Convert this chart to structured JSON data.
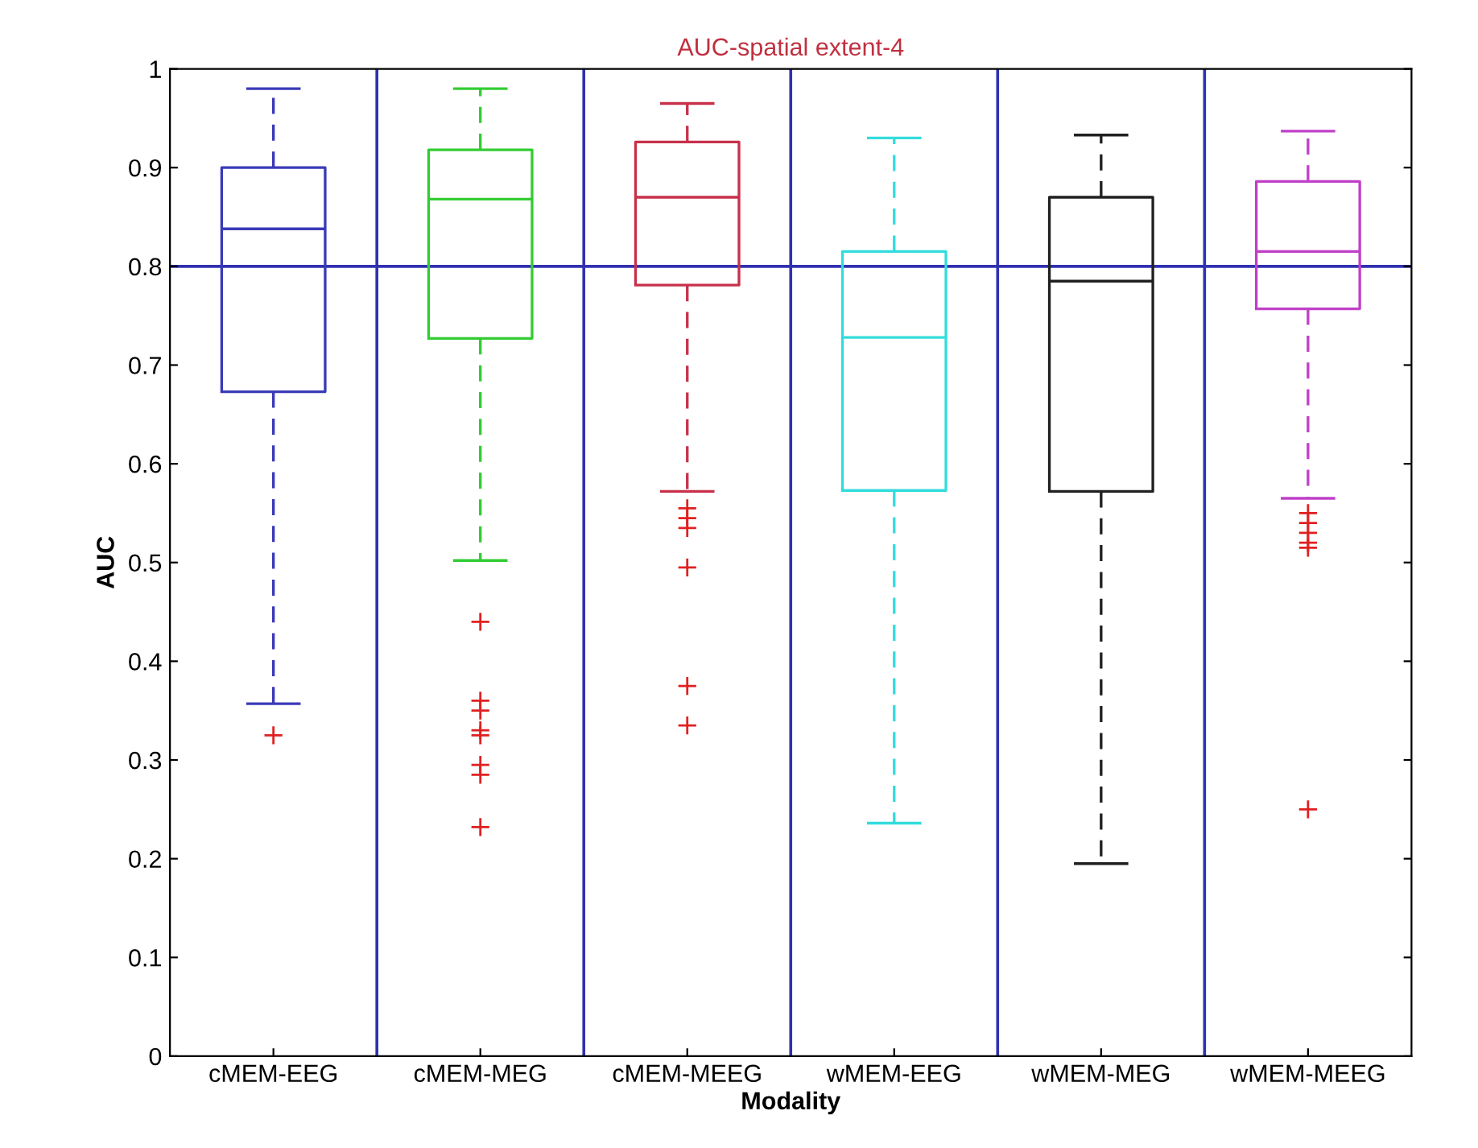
{
  "chart_data": {
    "type": "box",
    "title": "AUC-spatial extent-4",
    "xlabel": "Modality",
    "ylabel": "AUC",
    "categories": [
      "cMEM-EEG",
      "cMEM-MEG",
      "cMEM-MEEG",
      "wMEM-EEG",
      "wMEM-MEG",
      "wMEM-MEEG"
    ],
    "colors": [
      "#3a3ab8",
      "#33cc33",
      "#c8304a",
      "#33dcdc",
      "#202020",
      "#c040c8"
    ],
    "boxes": [
      {
        "low": 0.357,
        "q1": 0.673,
        "median": 0.838,
        "q3": 0.9,
        "high": 0.98,
        "outliers": [
          0.325
        ]
      },
      {
        "low": 0.502,
        "q1": 0.727,
        "median": 0.868,
        "q3": 0.918,
        "high": 0.98,
        "outliers": [
          0.44,
          0.36,
          0.35,
          0.33,
          0.325,
          0.295,
          0.285,
          0.232
        ]
      },
      {
        "low": 0.572,
        "q1": 0.781,
        "median": 0.87,
        "q3": 0.926,
        "high": 0.965,
        "outliers": [
          0.555,
          0.545,
          0.535,
          0.495,
          0.375,
          0.335
        ]
      },
      {
        "low": 0.236,
        "q1": 0.573,
        "median": 0.728,
        "q3": 0.815,
        "high": 0.93
      },
      {
        "low": 0.195,
        "q1": 0.572,
        "median": 0.785,
        "q3": 0.87,
        "high": 0.933
      },
      {
        "low": 0.565,
        "q1": 0.757,
        "median": 0.815,
        "q3": 0.886,
        "high": 0.937,
        "outliers": [
          0.55,
          0.54,
          0.53,
          0.52,
          0.515,
          0.25
        ]
      }
    ],
    "ylim": [
      0,
      1
    ],
    "yticks": [
      0,
      0.1,
      0.2,
      0.3,
      0.4,
      0.5,
      0.6,
      0.7,
      0.8,
      0.9,
      1
    ],
    "ref_lines": [
      {
        "axis": "y",
        "value": 0.8,
        "color": "#3030b0"
      }
    ],
    "grid": false,
    "legend": false,
    "line_style": "dashed"
  }
}
